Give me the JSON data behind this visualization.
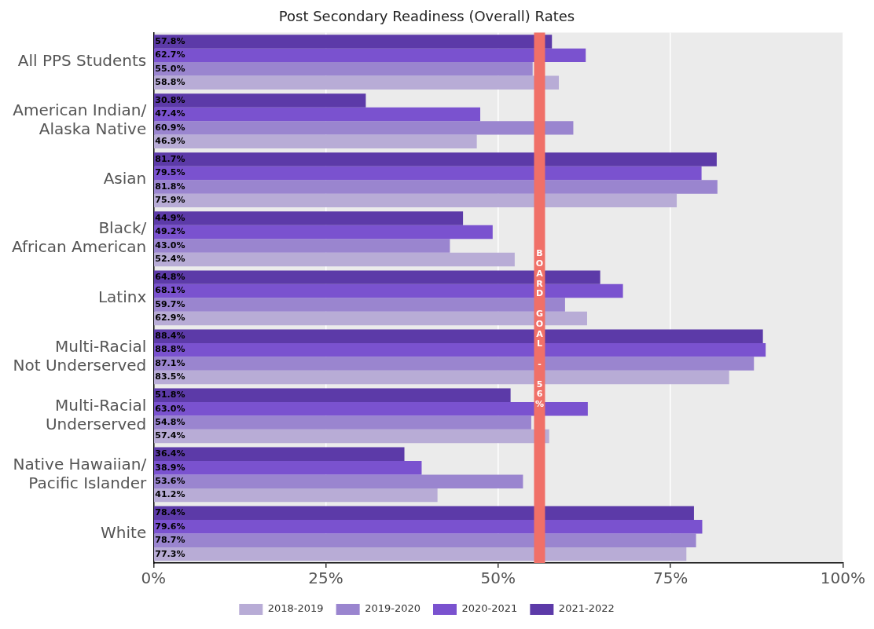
{
  "chart_data": {
    "type": "bar",
    "orientation": "horizontal",
    "title": "Post Secondary Readiness (Overall) Rates",
    "categories": [
      "All PPS Students",
      "American Indian/\nAlaska Native",
      "Asian",
      "Black/\nAfrican American",
      "Latinx",
      "Multi-Racial\nNot Underserved",
      "Multi-Racial\nUnderserved",
      "Native Hawaiian/\nPacific Islander",
      "White"
    ],
    "series": [
      {
        "name": "2018-2019",
        "color": "#b8acd6",
        "values": [
          58.8,
          46.9,
          75.9,
          52.4,
          62.9,
          83.5,
          57.4,
          41.2,
          77.3
        ],
        "value_labels": [
          "58.8%",
          "46.9%",
          "75.9%",
          "52.4%",
          "62.9%",
          "83.5%",
          "57.4%",
          "41.2%",
          "77.3%"
        ]
      },
      {
        "name": "2019-2020",
        "color": "#9a85cf",
        "values": [
          55.0,
          60.9,
          81.8,
          43.0,
          59.7,
          87.1,
          54.8,
          53.6,
          78.7
        ],
        "value_labels": [
          "55.0%",
          "60.9%",
          "81.8%",
          "43.0%",
          "59.7%",
          "87.1%",
          "54.8%",
          "53.6%",
          "78.7%"
        ]
      },
      {
        "name": "2020-2021",
        "color": "#7a52cf",
        "values": [
          62.7,
          47.4,
          79.5,
          49.2,
          68.1,
          88.8,
          63.0,
          38.9,
          79.6
        ],
        "value_labels": [
          "62.7%",
          "47.4%",
          "79.5%",
          "49.2%",
          "68.1%",
          "88.8%",
          "63.0%",
          "38.9%",
          "79.6%"
        ]
      },
      {
        "name": "2021-2022",
        "color": "#5c3aa8",
        "values": [
          57.8,
          30.8,
          81.7,
          44.9,
          64.8,
          88.4,
          51.8,
          36.4,
          78.4
        ],
        "value_labels": [
          "57.8%",
          "30.8%",
          "81.7%",
          "44.9%",
          "64.8%",
          "88.4%",
          "51.8%",
          "36.4%",
          "78.4%"
        ]
      }
    ],
    "xlim": [
      0,
      100
    ],
    "xticks": [
      {
        "value": 0,
        "label": "0%"
      },
      {
        "value": 25,
        "label": "25%"
      },
      {
        "value": 50,
        "label": "50%"
      },
      {
        "value": 75,
        "label": "75%"
      },
      {
        "value": 100,
        "label": "100%"
      }
    ],
    "ref_lines": [
      {
        "axis": "x",
        "value": 56,
        "label": "BOARD GOAL - 56%",
        "color": "#f07068"
      }
    ],
    "grid": "x",
    "legend": "bottom"
  }
}
